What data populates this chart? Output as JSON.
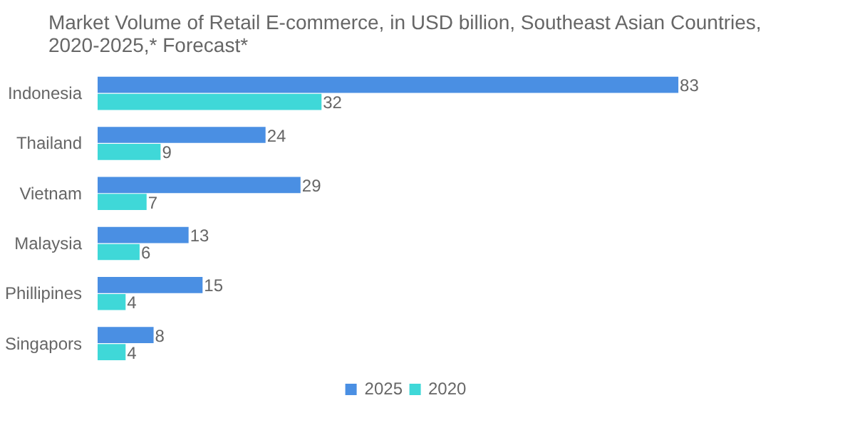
{
  "chart_data": {
    "type": "bar",
    "orientation": "horizontal",
    "title": "Market Volume of Retail E-commerce, in USD billion, Southeast Asian Countries, 2020-2025,* Forecast*",
    "categories": [
      "Indonesia",
      "Thailand",
      "Vietnam",
      "Malaysia",
      "Phillipines",
      "Singapors"
    ],
    "series": [
      {
        "name": "2025",
        "color": "#4a8fe3",
        "values": [
          83,
          24,
          29,
          13,
          15,
          8
        ]
      },
      {
        "name": "2020",
        "color": "#3fd8d8",
        "values": [
          32,
          9,
          7,
          6,
          4,
          4
        ]
      }
    ],
    "data_labels": true,
    "legend": "bottom",
    "grid": false
  }
}
